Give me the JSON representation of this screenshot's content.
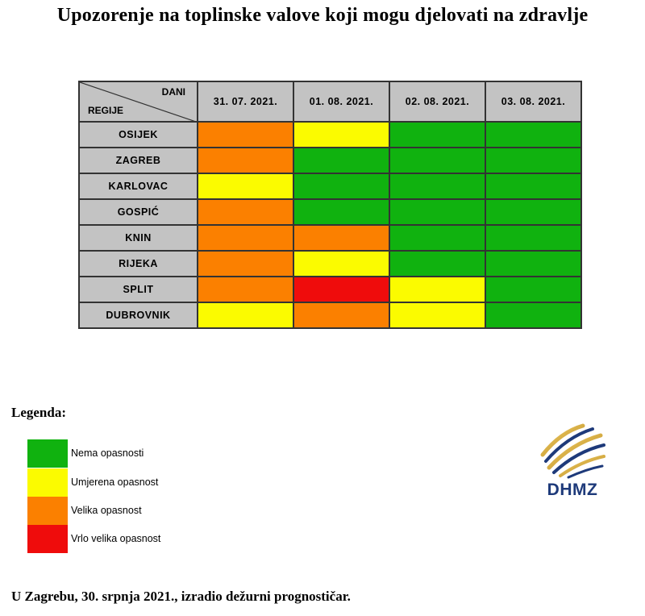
{
  "title": "Upozorenje na toplinske valove koji mogu djelovati na zdravlje",
  "table": {
    "corner_dani": "DANI",
    "corner_regije": "REGIJE",
    "dates": [
      "31. 07. 2021.",
      "01. 08. 2021.",
      "02. 08. 2021.",
      "03. 08. 2021."
    ],
    "rows": [
      {
        "region": "OSIJEK",
        "levels": [
          2,
          1,
          0,
          0
        ]
      },
      {
        "region": "ZAGREB",
        "levels": [
          2,
          0,
          0,
          0
        ]
      },
      {
        "region": "KARLOVAC",
        "levels": [
          1,
          0,
          0,
          0
        ]
      },
      {
        "region": "GOSPIĆ",
        "levels": [
          2,
          0,
          0,
          0
        ]
      },
      {
        "region": "KNIN",
        "levels": [
          2,
          2,
          0,
          0
        ]
      },
      {
        "region": "RIJEKA",
        "levels": [
          2,
          1,
          0,
          0
        ]
      },
      {
        "region": "SPLIT",
        "levels": [
          2,
          3,
          1,
          0
        ]
      },
      {
        "region": "DUBROVNIK",
        "levels": [
          1,
          2,
          1,
          0
        ]
      }
    ]
  },
  "legend": {
    "title": "Legenda:",
    "items": [
      {
        "label": "Nema opasnosti",
        "color": "#10b20f"
      },
      {
        "label": "Umjerena opasnost",
        "color": "#fbfb00"
      },
      {
        "label": "Velika opasnost",
        "color": "#fb8000"
      },
      {
        "label": "Vrlo velika opasnost",
        "color": "#ef0c0c"
      }
    ]
  },
  "logo": {
    "text": "DHMZ",
    "icon": "dhmz-logo-icon"
  },
  "footer": "U Zagrebu, 30. srpnja 2021., izradio dežurni prognostičar."
}
